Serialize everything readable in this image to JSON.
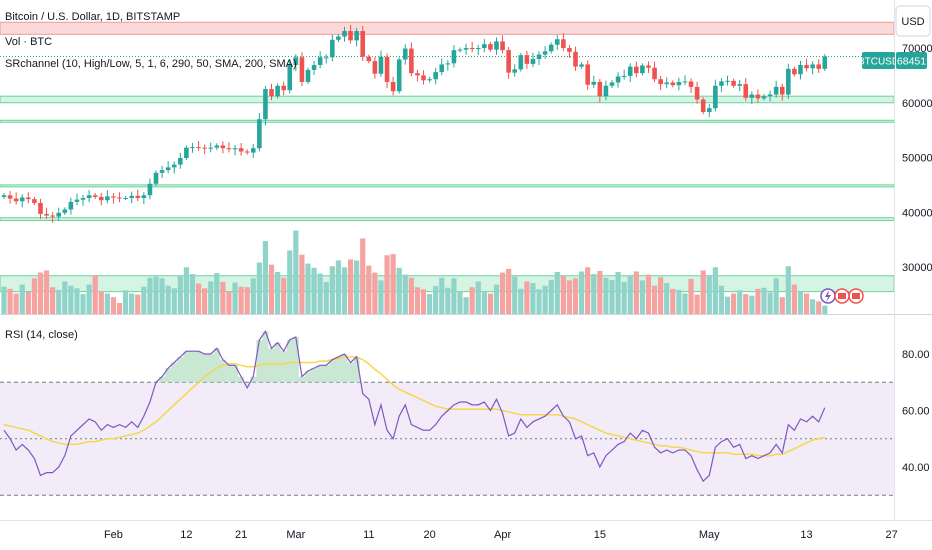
{
  "header": {
    "symbol_title": "Bitcoin / U.S. Dollar, 1D, BITSTAMP",
    "volume_label": "Vol · BTC",
    "indicator_label": "SRchannel (10, High/Low, 5, 1, 6, 290, 50, SMA, 200, SMA)",
    "currency_button": "USD",
    "ticker_tag": "BTCUSD",
    "last_price": "68451"
  },
  "rsi_panel": {
    "title": "RSI (14, close)"
  },
  "colors": {
    "up": "#26a69a",
    "down": "#ef5350",
    "volume_up": "#8fd3c9",
    "volume_down": "#f5a3a1",
    "sr_zone_green": "#a5e6c0",
    "sr_zone_red": "#f8b9b9",
    "rsi_line": "#7e57c2",
    "rsi_ma": "#f5d74f",
    "rsi_band": "#ede7f6"
  },
  "chart_data": [
    {
      "type": "candlestick",
      "title": "Bitcoin / U.S. Dollar, 1D, BITSTAMP",
      "x_ticks": [
        "Feb",
        "12",
        "21",
        "Mar",
        "11",
        "20",
        "Apr",
        "15",
        "May",
        "13",
        "27"
      ],
      "y_ticks": [
        30000,
        40000,
        50000,
        60000,
        70000
      ],
      "ylim": [
        24000,
        78000
      ],
      "last_price": 68451,
      "support_resistance_levels": [
        {
          "low": 72500,
          "high": 74700,
          "kind": "resistance"
        },
        {
          "low": 60000,
          "high": 61200,
          "kind": "support"
        },
        {
          "low": 56500,
          "high": 56800,
          "kind": "support"
        },
        {
          "low": 44700,
          "high": 45000,
          "kind": "support"
        },
        {
          "low": 38500,
          "high": 39000,
          "kind": "support"
        },
        {
          "low": 25500,
          "high": 28400,
          "kind": "support"
        }
      ],
      "close": [
        43100,
        42500,
        42000,
        42700,
        42400,
        41700,
        39700,
        39400,
        39200,
        39900,
        40500,
        41900,
        42300,
        42600,
        43100,
        42800,
        42200,
        42900,
        42700,
        42600,
        42600,
        43000,
        42600,
        43100,
        45200,
        47200,
        47700,
        48200,
        48700,
        49900,
        51800,
        51900,
        51800,
        51700,
        51800,
        52200,
        51700,
        51500,
        51700,
        51100,
        50900,
        51700,
        57000,
        62500,
        61200,
        63100,
        62300,
        66900,
        68300,
        63800,
        66000,
        66900,
        68300,
        68300,
        71500,
        72100,
        73100,
        71400,
        73100,
        68400,
        67600,
        65300,
        68400,
        63800,
        62100,
        67900,
        69900,
        65400,
        65000,
        64100,
        64300,
        65600,
        67000,
        67200,
        69600,
        69700,
        70000,
        69800,
        70000,
        70700,
        69700,
        71200,
        69600,
        65500,
        66100,
        68700,
        67100,
        68000,
        68800,
        69400,
        70600,
        71600,
        70000,
        69300,
        66600,
        67000,
        63300,
        63800,
        61200,
        63100,
        63700,
        64800,
        64900,
        66600,
        65400,
        66800,
        66400,
        64300,
        63400,
        63700,
        63200,
        63800,
        63900,
        62900,
        60600,
        58300,
        59000,
        63100,
        63900,
        64000,
        63100,
        63400,
        60900,
        61500,
        60800,
        61200,
        61500,
        62900,
        61500,
        66200,
        65200,
        66900,
        66300,
        67000,
        66200,
        68451
      ]
    },
    {
      "type": "bar",
      "title": "Vol · BTC",
      "volume": [
        5.2,
        4.8,
        3.9,
        5.6,
        4.2,
        6.8,
        7.9,
        8.3,
        5.1,
        4.6,
        6.2,
        5.4,
        4.9,
        3.8,
        5.6,
        7.4,
        4.3,
        3.9,
        3.2,
        2.1,
        4.5,
        3.9,
        3.7,
        5.2,
        6.9,
        7.1,
        6.8,
        5.4,
        4.9,
        7.3,
        8.9,
        7.6,
        5.8,
        4.9,
        6.2,
        7.8,
        6.1,
        4.3,
        6.0,
        5.2,
        5.1,
        6.8,
        9.8,
        13.9,
        9.4,
        8.0,
        6.9,
        12.1,
        15.9,
        11.3,
        9.6,
        8.8,
        7.7,
        6.1,
        9.1,
        10.2,
        8.9,
        10.4,
        10.2,
        14.4,
        9.2,
        7.9,
        6.4,
        11.2,
        11.4,
        8.8,
        7.5,
        6.9,
        5.1,
        4.7,
        3.8,
        5.3,
        6.9,
        5.0,
        6.8,
        4.3,
        3.2,
        5.1,
        6.2,
        4.4,
        3.9,
        5.6,
        7.9,
        8.6,
        7.1,
        4.8,
        6.2,
        5.9,
        4.7,
        5.4,
        6.5,
        8.0,
        7.2,
        6.4,
        6.8,
        8.1,
        8.9,
        7.6,
        8.2,
        6.9,
        6.5,
        8.0,
        6.1,
        7.3,
        8.1,
        6.4,
        7.5,
        5.4,
        7.0,
        5.9,
        4.8,
        4.6,
        3.9,
        6.7,
        3.7,
        8.3,
        7.4,
        8.9,
        5.4,
        3.3,
        3.9,
        4.5,
        3.8,
        3.5,
        4.8,
        5.0,
        4.1,
        6.8,
        3.2,
        9.1,
        5.6,
        4.3,
        3.9,
        2.8,
        2.4,
        1.6
      ]
    },
    {
      "type": "line",
      "title": "RSI (14, close)",
      "y_ticks": [
        40.0,
        60.0,
        80.0
      ],
      "ylim": [
        25,
        90
      ],
      "bands": [
        30,
        50,
        70
      ],
      "rsi": [
        53.0,
        50.0,
        46.0,
        48.0,
        46.0,
        43.0,
        37.0,
        38.0,
        38.0,
        40.0,
        44.0,
        51.0,
        53.0,
        55.0,
        57.0,
        56.0,
        53.0,
        55.0,
        54.0,
        55.0,
        54.0,
        56.0,
        54.0,
        58.0,
        63.0,
        70.0,
        72.0,
        75.0,
        77.0,
        79.0,
        81.0,
        81.0,
        81.0,
        80.0,
        80.0,
        82.0,
        78.0,
        76.0,
        76.0,
        72.0,
        68.0,
        72.0,
        85.0,
        88.0,
        82.0,
        84.0,
        81.0,
        85.0,
        86.0,
        72.0,
        74.0,
        75.0,
        76.0,
        76.0,
        78.0,
        79.0,
        80.0,
        77.0,
        79.0,
        66.0,
        64.0,
        55.0,
        62.0,
        53.0,
        50.0,
        58.0,
        62.0,
        55.0,
        54.0,
        53.0,
        53.0,
        55.0,
        58.0,
        60.0,
        62.0,
        63.0,
        63.0,
        62.0,
        62.0,
        63.0,
        60.0,
        64.0,
        59.0,
        51.0,
        52.0,
        57.0,
        54.0,
        56.0,
        57.0,
        58.0,
        60.0,
        62.0,
        58.0,
        56.0,
        50.0,
        51.0,
        44.0,
        45.0,
        40.0,
        44.0,
        46.0,
        48.0,
        49.0,
        52.0,
        50.0,
        53.0,
        52.0,
        47.0,
        45.0,
        46.0,
        45.0,
        46.0,
        46.0,
        44.0,
        39.0,
        35.0,
        37.0,
        47.0,
        49.0,
        50.0,
        47.0,
        48.0,
        43.0,
        44.0,
        43.0,
        44.0,
        45.0,
        48.0,
        45.0,
        55.0,
        53.0,
        57.0,
        56.0,
        58.0,
        56.0,
        61.0
      ],
      "rsi_ma": [
        55.0,
        54.5,
        54.0,
        53.5,
        53.0,
        52.0,
        51.0,
        50.0,
        49.0,
        48.5,
        48.0,
        48.0,
        48.0,
        48.5,
        49.0,
        49.0,
        49.5,
        50.0,
        50.0,
        50.5,
        51.0,
        51.5,
        52.0,
        53.0,
        54.5,
        56.0,
        58.0,
        60.0,
        62.0,
        64.0,
        66.0,
        68.0,
        70.0,
        72.0,
        73.5,
        75.0,
        76.0,
        76.5,
        76.5,
        76.0,
        75.5,
        75.5,
        76.0,
        76.5,
        76.5,
        76.5,
        76.5,
        77.0,
        77.0,
        77.0,
        77.0,
        77.0,
        77.5,
        77.5,
        78.0,
        78.5,
        79.0,
        79.0,
        79.0,
        78.0,
        76.5,
        74.5,
        73.0,
        71.0,
        69.0,
        67.5,
        66.5,
        65.5,
        64.5,
        63.5,
        62.5,
        61.5,
        61.0,
        60.5,
        60.5,
        60.5,
        60.5,
        60.5,
        60.5,
        60.5,
        60.5,
        60.5,
        60.0,
        59.5,
        59.0,
        58.5,
        58.5,
        58.5,
        58.5,
        58.5,
        58.5,
        58.5,
        58.0,
        57.5,
        57.0,
        56.0,
        55.0,
        54.0,
        53.0,
        52.0,
        51.5,
        51.0,
        50.5,
        50.0,
        49.5,
        49.0,
        48.5,
        48.0,
        47.5,
        47.5,
        47.0,
        47.0,
        46.5,
        46.0,
        45.5,
        45.0,
        45.0,
        45.0,
        45.0,
        45.0,
        44.5,
        44.5,
        44.5,
        44.5,
        44.0,
        44.0,
        44.0,
        44.5,
        44.5,
        45.5,
        46.5,
        47.5,
        48.5,
        49.5,
        50.0,
        50.5
      ]
    }
  ]
}
